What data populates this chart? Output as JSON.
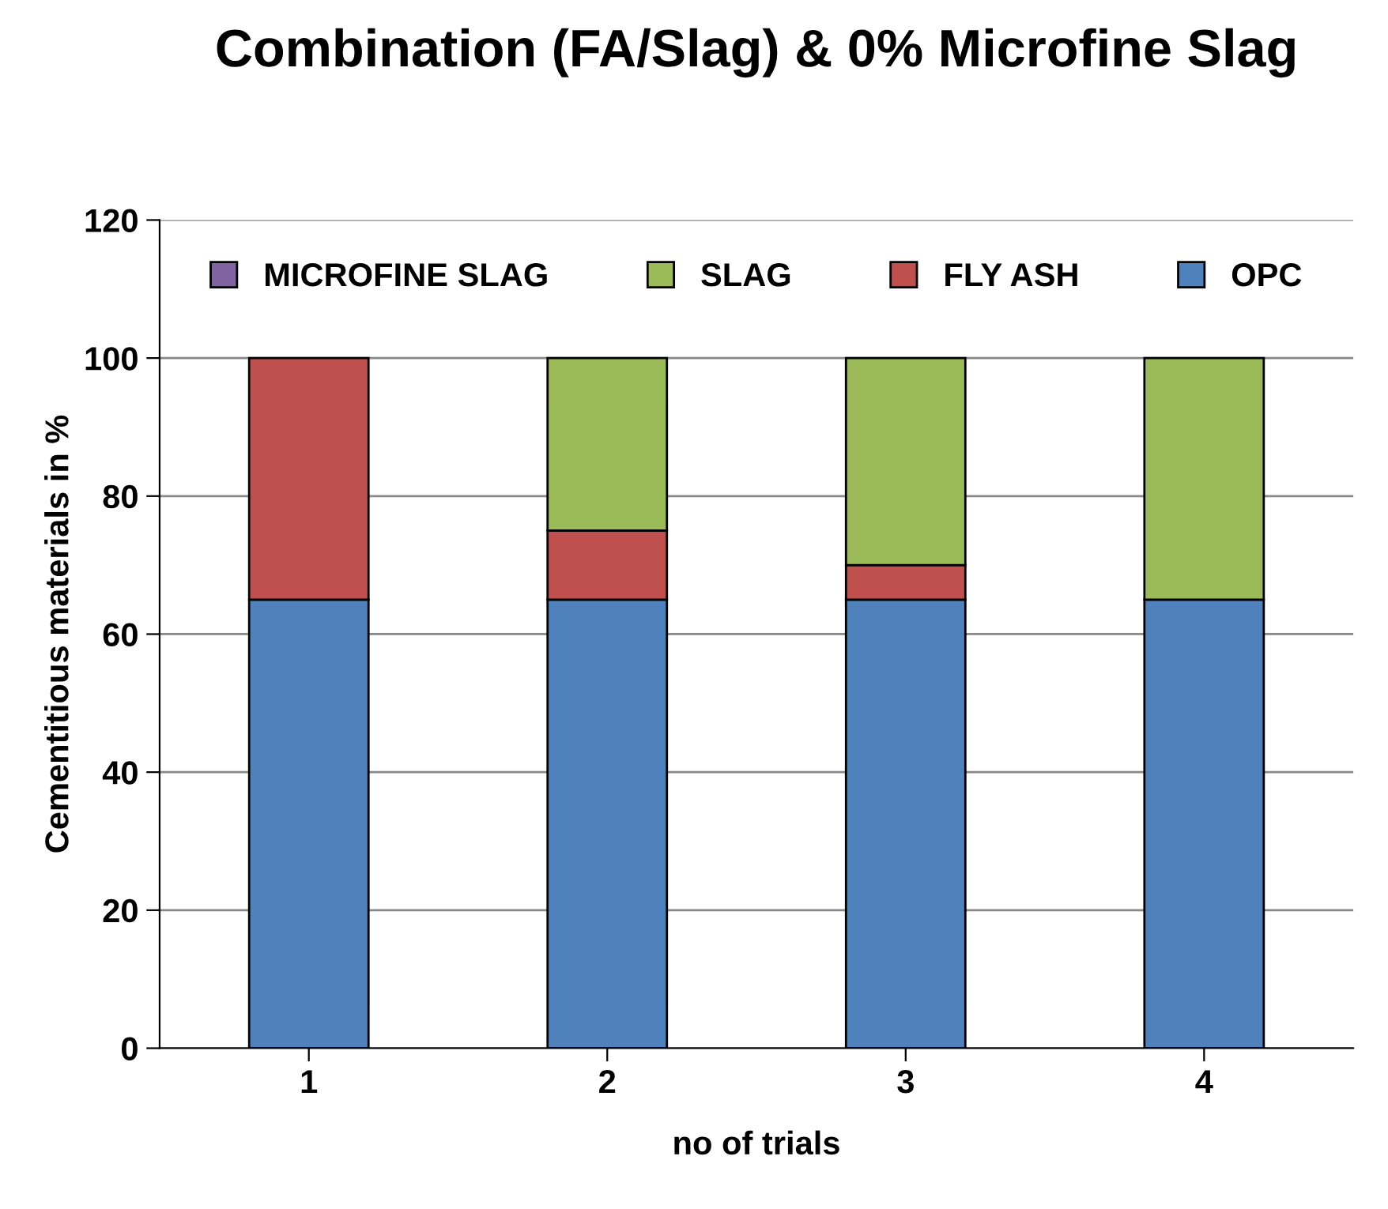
{
  "chart_data": {
    "type": "bar",
    "stacked": true,
    "title": "Combination (FA/Slag) & 0% Microfine Slag",
    "xlabel": "no of trials",
    "ylabel": "Cementitious materials in %",
    "categories": [
      "1",
      "2",
      "3",
      "4"
    ],
    "series": [
      {
        "name": "OPC",
        "color": "#4f81bd",
        "values": [
          65,
          65,
          65,
          65
        ]
      },
      {
        "name": "FLY ASH",
        "color": "#c0504d",
        "values": [
          35,
          10,
          5,
          0
        ]
      },
      {
        "name": "SLAG",
        "color": "#9bbb59",
        "values": [
          0,
          25,
          30,
          35
        ]
      },
      {
        "name": "MICROFINE SLAG",
        "color": "#8064a2",
        "values": [
          0,
          0,
          0,
          0
        ]
      }
    ],
    "ylim": [
      0,
      120
    ],
    "yticks": [
      0,
      20,
      40,
      60,
      80,
      100,
      120
    ],
    "grid": "y",
    "legend": "top"
  }
}
